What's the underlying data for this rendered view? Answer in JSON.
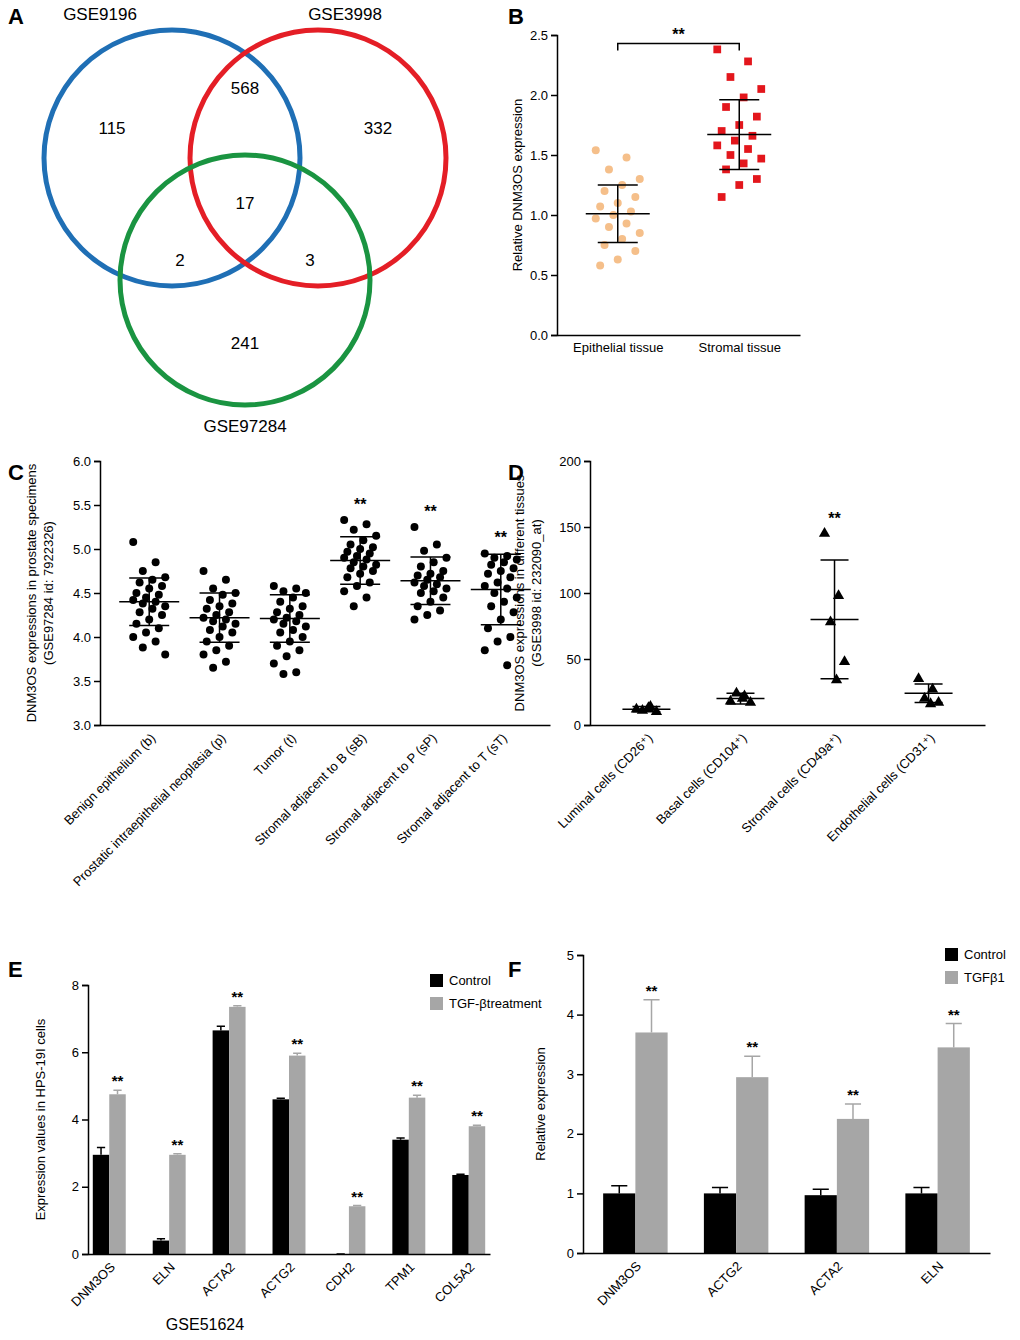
{
  "chart_data": [
    {
      "type": "venn",
      "title": "A",
      "sets": [
        {
          "name": "GSE9196",
          "color": "#1f6fb5"
        },
        {
          "name": "GSE3998",
          "color": "#e41e26"
        },
        {
          "name": "GSE97284",
          "color": "#1a9441"
        }
      ],
      "regions": [
        {
          "sets": [
            0
          ],
          "value": 115
        },
        {
          "sets": [
            0,
            1
          ],
          "value": 568
        },
        {
          "sets": [
            1
          ],
          "value": 332
        },
        {
          "sets": [
            0,
            1,
            2
          ],
          "value": 17
        },
        {
          "sets": [
            0,
            2
          ],
          "value": 2
        },
        {
          "sets": [
            1,
            2
          ],
          "value": 3
        },
        {
          "sets": [
            2
          ],
          "value": 241
        }
      ]
    },
    {
      "type": "dot",
      "title": "B",
      "ylabel": "Relative DNM3OS expression",
      "categories": [
        "Epithelial tissue",
        "Stromal tissue"
      ],
      "ylim": [
        0,
        2.5
      ],
      "yticks": [
        {
          "value": 0,
          "label": "0.0"
        },
        0.5,
        {
          "value": 1,
          "label": "1.0"
        },
        1.5,
        {
          "value": 2,
          "label": "2.0"
        },
        2.5
      ],
      "groups": [
        {
          "color": "#f5bf8a",
          "marker": "circle",
          "values": [
            1.54,
            1.48,
            1.38,
            1.3,
            1.25,
            1.2,
            1.15,
            1.1,
            1.07,
            1.03,
            1.0,
            0.97,
            0.93,
            0.9,
            0.85,
            0.8,
            0.75,
            0.7,
            0.63,
            0.58
          ],
          "mean": 1.01,
          "sd": 0.24
        },
        {
          "color": "#e3161c",
          "marker": "square",
          "values": [
            2.38,
            2.28,
            2.15,
            2.05,
            1.98,
            1.9,
            1.82,
            1.75,
            1.7,
            1.66,
            1.62,
            1.58,
            1.55,
            1.5,
            1.47,
            1.43,
            1.38,
            1.3,
            1.25,
            1.15
          ],
          "mean": 1.67,
          "sd": 0.29
        }
      ],
      "bracket": {
        "from": 0,
        "to": 1,
        "label": "**"
      }
    },
    {
      "type": "dot",
      "title": "C",
      "ylabel": [
        "DNM3OS expressions in prostate specimens",
        "(GSE97284 id: 7922326)"
      ],
      "categories": [
        "Benign epithelium (b)",
        "Prostatic intraepithelial neoplasia (p)",
        "Tumor (t)",
        "Stromal adjacent to B (sB)",
        "Stromal adjacent to P (sP)",
        "Stromal adjacent to T (sT)"
      ],
      "ylim": [
        3,
        6
      ],
      "yticks": [
        {
          "value": 3,
          "label": "3.0"
        },
        3.5,
        {
          "value": 4,
          "label": "4.0"
        },
        4.5,
        {
          "value": 5,
          "label": "5.0"
        },
        5.5,
        {
          "value": 6,
          "label": "6.0"
        }
      ],
      "groups": [
        {
          "color": "#000000",
          "marker": "circle",
          "values": [
            5.08,
            4.85,
            4.75,
            4.68,
            4.65,
            4.62,
            4.58,
            4.55,
            4.5,
            4.48,
            4.45,
            4.42,
            4.4,
            4.38,
            4.35,
            4.32,
            4.28,
            4.25,
            4.2,
            4.15,
            4.1,
            4.05,
            4.0,
            3.95,
            3.88,
            3.8
          ],
          "mean": 4.4,
          "sd": 0.27
        },
        {
          "color": "#000000",
          "marker": "circle",
          "values": [
            4.75,
            4.65,
            4.55,
            4.5,
            4.48,
            4.42,
            4.38,
            4.35,
            4.32,
            4.28,
            4.25,
            4.22,
            4.2,
            4.18,
            4.15,
            4.12,
            4.08,
            4.05,
            4.0,
            3.95,
            3.9,
            3.85,
            3.8,
            3.72,
            3.65
          ],
          "mean": 4.22,
          "sd": 0.28
        },
        {
          "color": "#000000",
          "marker": "circle",
          "values": [
            4.58,
            4.55,
            4.52,
            4.5,
            4.45,
            4.4,
            4.35,
            4.32,
            4.28,
            4.25,
            4.22,
            4.2,
            4.18,
            4.15,
            4.12,
            4.08,
            4.05,
            4.0,
            3.95,
            3.9,
            3.85,
            3.78,
            3.7,
            3.6,
            3.58
          ],
          "mean": 4.21,
          "sd": 0.27
        },
        {
          "color": "#000000",
          "marker": "circle",
          "values": [
            5.33,
            5.28,
            5.22,
            5.15,
            5.1,
            5.05,
            5.02,
            5.0,
            4.97,
            4.95,
            4.92,
            4.9,
            4.88,
            4.85,
            4.82,
            4.8,
            4.78,
            4.75,
            4.72,
            4.68,
            4.62,
            4.58,
            4.52,
            4.45,
            4.35
          ],
          "mean": 4.87,
          "sd": 0.27,
          "annotation": "**"
        },
        {
          "color": "#000000",
          "marker": "circle",
          "values": [
            5.25,
            5.05,
            4.98,
            4.9,
            4.85,
            4.8,
            4.75,
            4.72,
            4.7,
            4.68,
            4.65,
            4.62,
            4.6,
            4.58,
            4.55,
            4.52,
            4.5,
            4.45,
            4.4,
            4.35,
            4.3,
            4.25,
            4.2
          ],
          "mean": 4.64,
          "sd": 0.27,
          "annotation": "**"
        },
        {
          "color": "#000000",
          "marker": "circle",
          "values": [
            4.95,
            4.92,
            4.9,
            4.88,
            4.85,
            4.82,
            4.78,
            4.75,
            4.72,
            4.68,
            4.62,
            4.58,
            4.55,
            4.5,
            4.45,
            4.4,
            4.35,
            4.28,
            4.2,
            4.1,
            4.0,
            3.95,
            3.85,
            3.68
          ],
          "mean": 4.54,
          "sd": 0.4,
          "annotation": "**"
        }
      ]
    },
    {
      "type": "dot",
      "title": "D",
      "ylabel": [
        "DNM3OS expressions in different tissues",
        "(GSE3998 id: 232090_at)"
      ],
      "categories": [
        "Luminal cells (CD26⁺)",
        "Basal cells (CD104⁺)",
        "Stromal cells (CD49a⁺)",
        "Endothelial cells (CD31⁺)"
      ],
      "ylim": [
        0,
        200
      ],
      "yticks": [
        0,
        50,
        100,
        150,
        200
      ],
      "groups": [
        {
          "color": "#000000",
          "marker": "triangle",
          "values": [
            12,
            14,
            11,
            10,
            13
          ],
          "mean": 12,
          "sd": 2
        },
        {
          "color": "#000000",
          "marker": "triangle",
          "values": [
            18,
            22,
            24,
            17,
            20
          ],
          "mean": 20,
          "sd": 4
        },
        {
          "color": "#000000",
          "marker": "triangle",
          "values": [
            145,
            98,
            78,
            48,
            34
          ],
          "mean": 80,
          "sd": 45,
          "annotation": "**"
        },
        {
          "color": "#000000",
          "marker": "triangle",
          "values": [
            35,
            27,
            20,
            17,
            16
          ],
          "mean": 24,
          "sd": 7
        }
      ]
    },
    {
      "type": "bar",
      "title": "E",
      "ylabel": "Expression values in HPS-19I cells",
      "xlabel": "GSE51624",
      "categories": [
        "DNM3OS",
        "ELN",
        "ACTA2",
        "ACTG2",
        "CDH2",
        "TPM1",
        "COL5A2"
      ],
      "ylim": [
        0,
        8
      ],
      "yticks": [
        0,
        2,
        4,
        6,
        8
      ],
      "legend": "top-right",
      "series": [
        {
          "name": "Control",
          "color": "#000000",
          "values": [
            2.95,
            0.4,
            6.65,
            4.6,
            0,
            3.4,
            2.35
          ],
          "errors": [
            0.22,
            0.05,
            0.12,
            0.03,
            0,
            0.05,
            0.02
          ]
        },
        {
          "name": "TGF-βtreatment",
          "color": "#a6a6a6",
          "values": [
            4.75,
            2.95,
            7.35,
            5.9,
            1.42,
            4.65,
            3.8
          ],
          "errors": [
            0.12,
            0.03,
            0.03,
            0.07,
            0.02,
            0.07,
            0.03
          ],
          "annotation": "**"
        }
      ]
    },
    {
      "type": "bar",
      "title": "F",
      "ylabel": "Relative expression",
      "categories": [
        "DNM3OS",
        "ACTG2",
        "ACTA2",
        "ELN"
      ],
      "ylim": [
        0,
        5
      ],
      "yticks": [
        0,
        1,
        2,
        3,
        4,
        5
      ],
      "legend": "top-right",
      "series": [
        {
          "name": "Control",
          "color": "#000000",
          "values": [
            1.0,
            1.0,
            0.97,
            1.0
          ],
          "errors": [
            0.13,
            0.1,
            0.1,
            0.1
          ]
        },
        {
          "name": "TGFβ1",
          "color": "#a6a6a6",
          "values": [
            3.7,
            2.95,
            2.25,
            3.45
          ],
          "errors": [
            0.55,
            0.35,
            0.25,
            0.4
          ],
          "annotation": "**"
        }
      ]
    }
  ]
}
